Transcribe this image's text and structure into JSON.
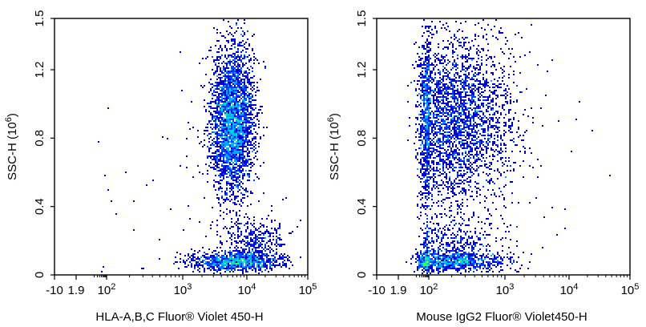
{
  "chart_data": [
    {
      "type": "scatter",
      "subtype": "flow-cytometry-density",
      "title": "",
      "xlabel": "HLA-A,B,C  Fluor® Violet 450-H",
      "ylabel": "SSC-H  (10",
      "ylabel_exponent": "6",
      "ylabel_close": ")",
      "x_scale": "biexponential",
      "xlim": [
        -10,
        100000
      ],
      "ylim": [
        0,
        1.5
      ],
      "x_ticks": [
        {
          "value": -10,
          "label": "-10",
          "exp": ""
        },
        {
          "value": 1.9,
          "label": "1.9",
          "exp": ""
        },
        {
          "value": 100,
          "label": "10",
          "exp": "2"
        },
        {
          "value": 1000,
          "label": "10",
          "exp": "3"
        },
        {
          "value": 10000,
          "label": "10",
          "exp": "4"
        },
        {
          "value": 100000,
          "label": "10",
          "exp": "5"
        }
      ],
      "y_ticks": [
        {
          "value": 0,
          "label": "0"
        },
        {
          "value": 0.4,
          "label": "0.4"
        },
        {
          "value": 0.8,
          "label": "0.8"
        },
        {
          "value": 1.2,
          "label": "1.2"
        },
        {
          "value": 1.5,
          "label": "1.5"
        }
      ],
      "clusters": [
        {
          "name": "main-population",
          "x_center": 6000,
          "y_center": 0.9,
          "log_sd_x": 0.17,
          "sd_y": 0.22,
          "n": 3200
        },
        {
          "name": "low-ssc-population",
          "x_center": 7000,
          "y_center": 0.08,
          "log_sd_x": 0.35,
          "sd_y": 0.03,
          "n": 1100
        },
        {
          "name": "low-ssc-upper-tail",
          "x_center": 14000,
          "y_center": 0.2,
          "log_sd_x": 0.25,
          "sd_y": 0.06,
          "n": 300
        },
        {
          "name": "scattered-events",
          "x_center": 3000,
          "y_center": 0.5,
          "log_sd_x": 0.9,
          "sd_y": 0.35,
          "n": 90
        }
      ]
    },
    {
      "type": "scatter",
      "subtype": "flow-cytometry-density",
      "title": "",
      "xlabel": "Mouse IgG2 Fluor® Violet450-H",
      "ylabel": "SSC-H  (10",
      "ylabel_exponent": "6",
      "ylabel_close": ")",
      "x_scale": "biexponential",
      "xlim": [
        -10,
        100000
      ],
      "ylim": [
        0,
        1.5
      ],
      "x_ticks": [
        {
          "value": -10,
          "label": "-10",
          "exp": ""
        },
        {
          "value": 1.9,
          "label": "1.9",
          "exp": ""
        },
        {
          "value": 100,
          "label": "10",
          "exp": "2"
        },
        {
          "value": 1000,
          "label": "10",
          "exp": "3"
        },
        {
          "value": 10000,
          "label": "10",
          "exp": "4"
        },
        {
          "value": 100000,
          "label": "10",
          "exp": "5"
        }
      ],
      "y_ticks": [
        {
          "value": 0,
          "label": "0"
        },
        {
          "value": 0.4,
          "label": "0.4"
        },
        {
          "value": 0.8,
          "label": "0.8"
        },
        {
          "value": 1.2,
          "label": "1.2"
        },
        {
          "value": 1.5,
          "label": "1.5"
        }
      ],
      "clusters": [
        {
          "name": "main-population",
          "x_center": 200,
          "y_center": 0.9,
          "log_sd_x": 0.4,
          "sd_y": 0.26,
          "n": 3400
        },
        {
          "name": "low-ssc-population",
          "x_center": 180,
          "y_center": 0.08,
          "log_sd_x": 0.4,
          "sd_y": 0.03,
          "n": 1100
        },
        {
          "name": "low-ssc-upper-tail",
          "x_center": 200,
          "y_center": 0.2,
          "log_sd_x": 0.35,
          "sd_y": 0.05,
          "n": 280
        },
        {
          "name": "scattered-events",
          "x_center": 800,
          "y_center": 0.6,
          "log_sd_x": 0.8,
          "sd_y": 0.35,
          "n": 90
        }
      ]
    }
  ],
  "density_colors": [
    "#0000cc",
    "#0044ff",
    "#00aaff",
    "#00e0c0",
    "#40ff40",
    "#c8ff00",
    "#ffe000",
    "#ff8800",
    "#ff2200"
  ]
}
